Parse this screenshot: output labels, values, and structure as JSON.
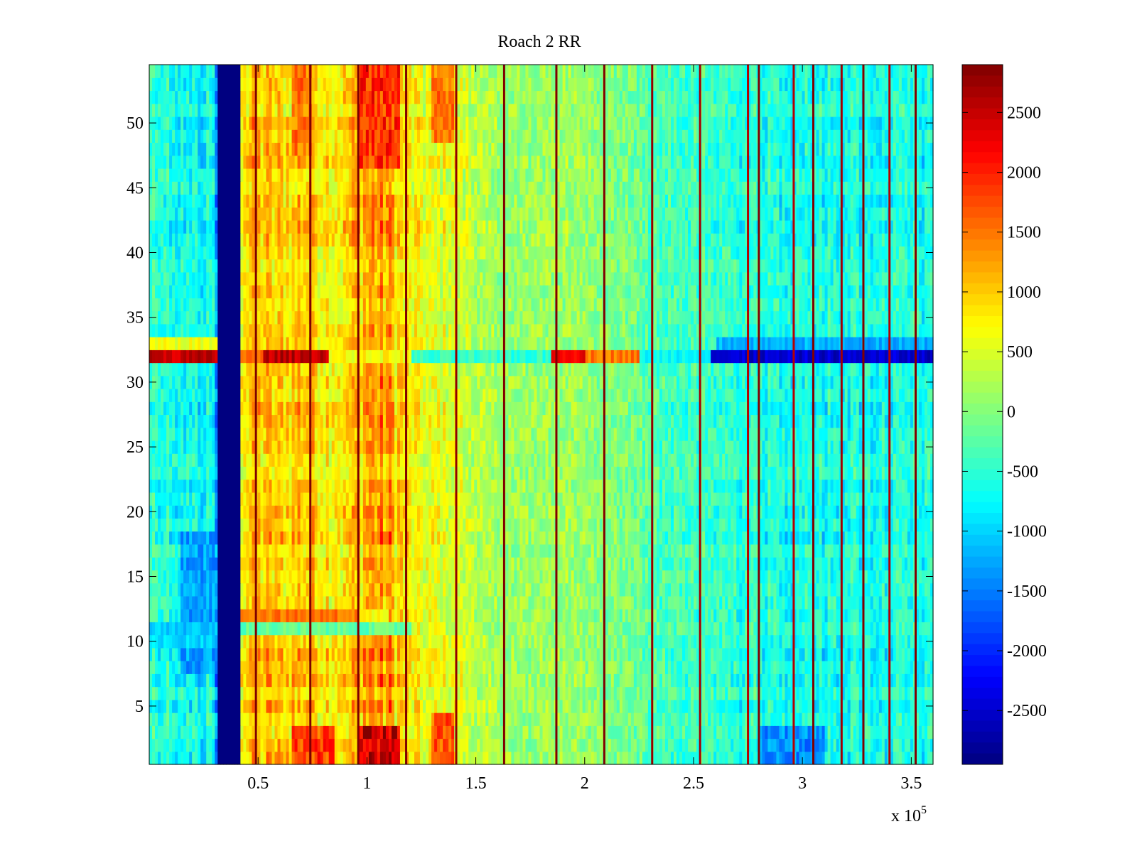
{
  "chart_data": {
    "type": "heatmap",
    "title": "Roach 2 RR",
    "xlabel": "",
    "ylabel": "",
    "x_exponent_label": "x 10",
    "x_exponent_power": "5",
    "xlim": [
      0,
      3.6
    ],
    "ylim": [
      0.5,
      54.5
    ],
    "x_ticks": [
      {
        "value": 0.5,
        "label": "0.5"
      },
      {
        "value": 1,
        "label": "1"
      },
      {
        "value": 1.5,
        "label": "1.5"
      },
      {
        "value": 2,
        "label": "2"
      },
      {
        "value": 2.5,
        "label": "2.5"
      },
      {
        "value": 3,
        "label": "3"
      },
      {
        "value": 3.5,
        "label": "3.5"
      }
    ],
    "y_ticks": [
      {
        "value": 5,
        "label": "5"
      },
      {
        "value": 10,
        "label": "10"
      },
      {
        "value": 15,
        "label": "15"
      },
      {
        "value": 20,
        "label": "20"
      },
      {
        "value": 25,
        "label": "25"
      },
      {
        "value": 30,
        "label": "30"
      },
      {
        "value": 35,
        "label": "35"
      },
      {
        "value": 40,
        "label": "40"
      },
      {
        "value": 45,
        "label": "45"
      },
      {
        "value": 50,
        "label": "50"
      }
    ],
    "colorbar": {
      "min": -2950,
      "max": 2900,
      "colormap": "jet",
      "ticks": [
        {
          "value": 2500,
          "label": "2500"
        },
        {
          "value": 2000,
          "label": "2000"
        },
        {
          "value": 1500,
          "label": "1500"
        },
        {
          "value": 1000,
          "label": "1000"
        },
        {
          "value": 500,
          "label": "500"
        },
        {
          "value": 0,
          "label": "0"
        },
        {
          "value": -500,
          "label": "-500"
        },
        {
          "value": -1000,
          "label": "-1000"
        },
        {
          "value": -1500,
          "label": "-1500"
        },
        {
          "value": -2000,
          "label": "-2000"
        },
        {
          "value": -2500,
          "label": "-2500"
        }
      ]
    },
    "column_profile": [
      {
        "x": 0.0,
        "v": -450
      },
      {
        "x": 0.1,
        "v": -550
      },
      {
        "x": 0.2,
        "v": -750
      },
      {
        "x": 0.3,
        "v": -650
      },
      {
        "x": 0.32,
        "v": -2950
      },
      {
        "x": 0.42,
        "v": 900
      },
      {
        "x": 0.5,
        "v": 1000
      },
      {
        "x": 0.6,
        "v": 950
      },
      {
        "x": 0.7,
        "v": 1050
      },
      {
        "x": 0.8,
        "v": 900
      },
      {
        "x": 0.9,
        "v": 850
      },
      {
        "x": 1.0,
        "v": 1300
      },
      {
        "x": 1.1,
        "v": 1250
      },
      {
        "x": 1.2,
        "v": 700
      },
      {
        "x": 1.3,
        "v": 550
      },
      {
        "x": 1.4,
        "v": 550
      },
      {
        "x": 1.5,
        "v": 300
      },
      {
        "x": 1.6,
        "v": 150
      },
      {
        "x": 1.7,
        "v": 100
      },
      {
        "x": 1.8,
        "v": 150
      },
      {
        "x": 1.9,
        "v": 150
      },
      {
        "x": 2.0,
        "v": 100
      },
      {
        "x": 2.1,
        "v": 0
      },
      {
        "x": 2.2,
        "v": -50
      },
      {
        "x": 2.3,
        "v": -250
      },
      {
        "x": 2.4,
        "v": -350
      },
      {
        "x": 2.5,
        "v": -400
      },
      {
        "x": 2.6,
        "v": -450
      },
      {
        "x": 2.7,
        "v": -500
      },
      {
        "x": 2.8,
        "v": -550
      },
      {
        "x": 2.9,
        "v": -600
      },
      {
        "x": 3.0,
        "v": -550
      },
      {
        "x": 3.1,
        "v": -650
      },
      {
        "x": 3.2,
        "v": -600
      },
      {
        "x": 3.3,
        "v": -650
      },
      {
        "x": 3.4,
        "v": -600
      },
      {
        "x": 3.5,
        "v": -650
      },
      {
        "x": 3.6,
        "v": -700
      }
    ],
    "dead_band": {
      "x_start": 0.32,
      "x_end": 0.42,
      "value": -2950
    },
    "spike_columns": [
      {
        "x": 0.49,
        "v": 2900
      },
      {
        "x": 0.74,
        "v": 2900
      },
      {
        "x": 0.96,
        "v": 2900
      },
      {
        "x": 1.18,
        "v": 2900
      },
      {
        "x": 1.41,
        "v": 2800
      },
      {
        "x": 1.63,
        "v": 2900
      },
      {
        "x": 1.87,
        "v": 2900
      },
      {
        "x": 2.09,
        "v": 2900
      },
      {
        "x": 2.31,
        "v": 2800
      },
      {
        "x": 2.53,
        "v": 2700
      },
      {
        "x": 2.75,
        "v": 2600
      },
      {
        "x": 2.8,
        "v": 2900
      },
      {
        "x": 2.96,
        "v": 2600
      },
      {
        "x": 3.05,
        "v": 2900
      },
      {
        "x": 3.18,
        "v": 2700
      },
      {
        "x": 3.28,
        "v": 2900
      },
      {
        "x": 3.4,
        "v": 2600
      },
      {
        "x": 3.52,
        "v": 2900
      }
    ],
    "row_overrides": [
      {
        "row": 32,
        "segments": [
          {
            "x_start": 0.0,
            "x_end": 0.32,
            "v": 2500
          },
          {
            "x_start": 0.42,
            "x_end": 0.52,
            "v": 1500
          },
          {
            "x_start": 0.52,
            "x_end": 0.83,
            "v": 2550
          },
          {
            "x_start": 0.83,
            "x_end": 1.2,
            "v": 700
          },
          {
            "x_start": 1.2,
            "x_end": 1.85,
            "v": -500
          },
          {
            "x_start": 1.85,
            "x_end": 2.0,
            "v": 2300
          },
          {
            "x_start": 2.0,
            "x_end": 2.25,
            "v": 1500
          },
          {
            "x_start": 2.25,
            "x_end": 2.58,
            "v": -700
          },
          {
            "x_start": 2.58,
            "x_end": 3.6,
            "v": -2500
          }
        ]
      },
      {
        "row": 33,
        "segments": [
          {
            "x_start": 0.0,
            "x_end": 0.32,
            "v": 600
          },
          {
            "x_start": 2.6,
            "x_end": 3.6,
            "v": -1200
          }
        ]
      },
      {
        "row": 12,
        "segments": [
          {
            "x_start": 0.42,
            "x_end": 0.95,
            "v": 1500
          },
          {
            "x_start": 0.95,
            "x_end": 1.1,
            "v": 700
          }
        ]
      },
      {
        "row": 11,
        "segments": [
          {
            "x_start": 0.0,
            "x_end": 0.3,
            "v": -1100
          },
          {
            "x_start": 0.42,
            "x_end": 1.2,
            "v": -200
          }
        ]
      },
      {
        "row": 10,
        "segments": [
          {
            "x_start": 0.0,
            "x_end": 0.3,
            "v": -1000
          }
        ]
      }
    ],
    "hotspots": [
      {
        "x_start": 0.95,
        "x_end": 1.15,
        "y_start": 0.5,
        "y_end": 3.5,
        "v": 2500
      },
      {
        "x_start": 0.95,
        "x_end": 1.15,
        "y_start": 47,
        "y_end": 54.5,
        "v": 1900
      },
      {
        "x_start": 0.65,
        "x_end": 0.85,
        "y_start": 0.5,
        "y_end": 3.5,
        "v": 1800
      },
      {
        "x_start": 1.3,
        "x_end": 1.4,
        "y_start": 0.5,
        "y_end": 4,
        "v": 1700
      },
      {
        "x_start": 1.3,
        "x_end": 1.4,
        "y_start": 49,
        "y_end": 54.5,
        "v": 1500
      },
      {
        "x_start": 0.65,
        "x_end": 0.75,
        "y_start": 48,
        "y_end": 54.5,
        "v": 1500
      },
      {
        "x_start": 2.8,
        "x_end": 3.1,
        "y_start": 0.5,
        "y_end": 3,
        "v": -1400
      },
      {
        "x_start": 0.15,
        "x_end": 0.3,
        "y_start": 8,
        "y_end": 18,
        "v": -1300
      }
    ]
  }
}
